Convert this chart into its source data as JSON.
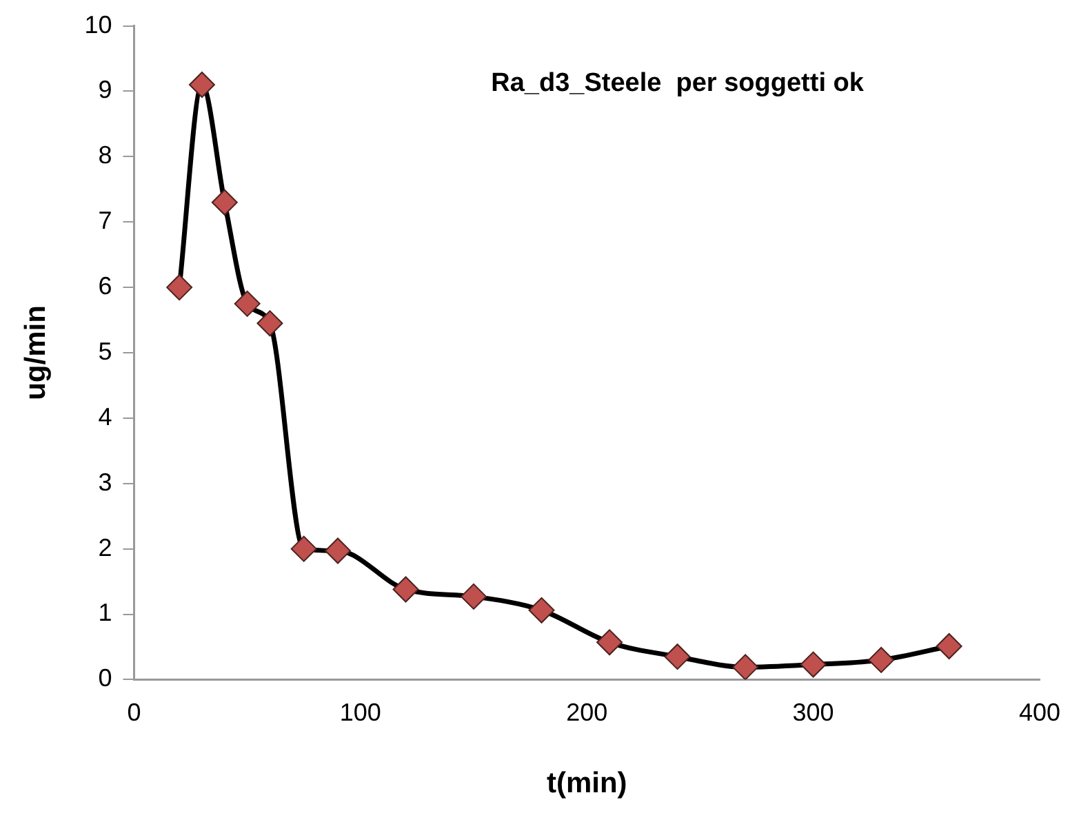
{
  "chart_data": {
    "type": "line",
    "title": "Ra_d3_Steele  per soggetti ok",
    "xlabel": "t(min)",
    "ylabel": "ug/min",
    "x": [
      20,
      30,
      40,
      50,
      60,
      75,
      90,
      120,
      150,
      180,
      210,
      240,
      270,
      300,
      330,
      360
    ],
    "series": [
      {
        "color": "#c0504d",
        "values": [
          6.0,
          9.1,
          7.3,
          5.75,
          5.45,
          2.0,
          1.97,
          1.38,
          1.27,
          1.06,
          0.57,
          0.35,
          0.19,
          0.23,
          0.3,
          0.51
        ]
      }
    ],
    "xlim": [
      0,
      400
    ],
    "xticks": [
      0,
      100,
      200,
      300,
      400
    ],
    "ylim": [
      0,
      10
    ],
    "yticks": [
      0,
      1,
      2,
      3,
      4,
      5,
      6,
      7,
      8,
      9,
      10
    ],
    "grid": false,
    "legend": false,
    "marker": "diamond",
    "line_style": "solid"
  }
}
